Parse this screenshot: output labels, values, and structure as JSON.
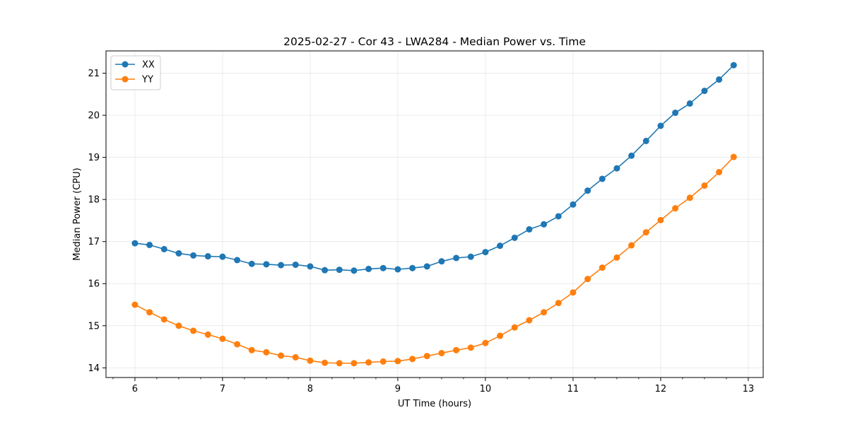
{
  "chart_data": {
    "type": "line",
    "title": "2025-02-27 - Cor 43 - LWA284 - Median Power vs. Time",
    "xlabel": "UT Time (hours)",
    "ylabel": "Median Power (CPU)",
    "xlim": [
      5.67,
      13.17
    ],
    "ylim": [
      13.77,
      21.53
    ],
    "xticks": [
      6,
      7,
      8,
      9,
      10,
      11,
      12,
      13
    ],
    "yticks": [
      14,
      15,
      16,
      17,
      18,
      19,
      20,
      21
    ],
    "xminor_step": 0.25,
    "grid": true,
    "legend_position": "top-left",
    "x": [
      6.0,
      6.1667,
      6.3333,
      6.5,
      6.6667,
      6.8333,
      7.0,
      7.1667,
      7.3333,
      7.5,
      7.6667,
      7.8333,
      8.0,
      8.1667,
      8.3333,
      8.5,
      8.6667,
      8.8333,
      9.0,
      9.1667,
      9.3333,
      9.5,
      9.6667,
      9.8333,
      10.0,
      10.1667,
      10.3333,
      10.5,
      10.6667,
      10.8333,
      11.0,
      11.1667,
      11.3333,
      11.5,
      11.6667,
      11.8333,
      12.0,
      12.1667,
      12.3333,
      12.5,
      12.6667,
      12.8333
    ],
    "series": [
      {
        "name": "XX",
        "color": "#1f77b4",
        "values": [
          16.96,
          16.92,
          16.82,
          16.72,
          16.67,
          16.65,
          16.64,
          16.56,
          16.47,
          16.46,
          16.44,
          16.45,
          16.41,
          16.32,
          16.33,
          16.31,
          16.35,
          16.37,
          16.34,
          16.37,
          16.41,
          16.53,
          16.61,
          16.64,
          16.75,
          16.9,
          17.09,
          17.29,
          17.41,
          17.6,
          17.88,
          18.21,
          18.49,
          18.74,
          19.04,
          19.39,
          19.75,
          20.06,
          20.28,
          20.58,
          20.85,
          21.19
        ]
      },
      {
        "name": "YY",
        "color": "#ff7f0e",
        "values": [
          15.5,
          15.32,
          15.15,
          15.0,
          14.88,
          14.79,
          14.69,
          14.56,
          14.42,
          14.37,
          14.29,
          14.25,
          14.17,
          14.12,
          14.11,
          14.11,
          14.13,
          14.15,
          14.16,
          14.21,
          14.28,
          14.35,
          14.42,
          14.48,
          14.59,
          14.76,
          14.96,
          15.13,
          15.32,
          15.54,
          15.79,
          16.11,
          16.38,
          16.62,
          16.91,
          17.22,
          17.51,
          17.79,
          18.04,
          18.33,
          18.65,
          19.01
        ]
      }
    ]
  }
}
